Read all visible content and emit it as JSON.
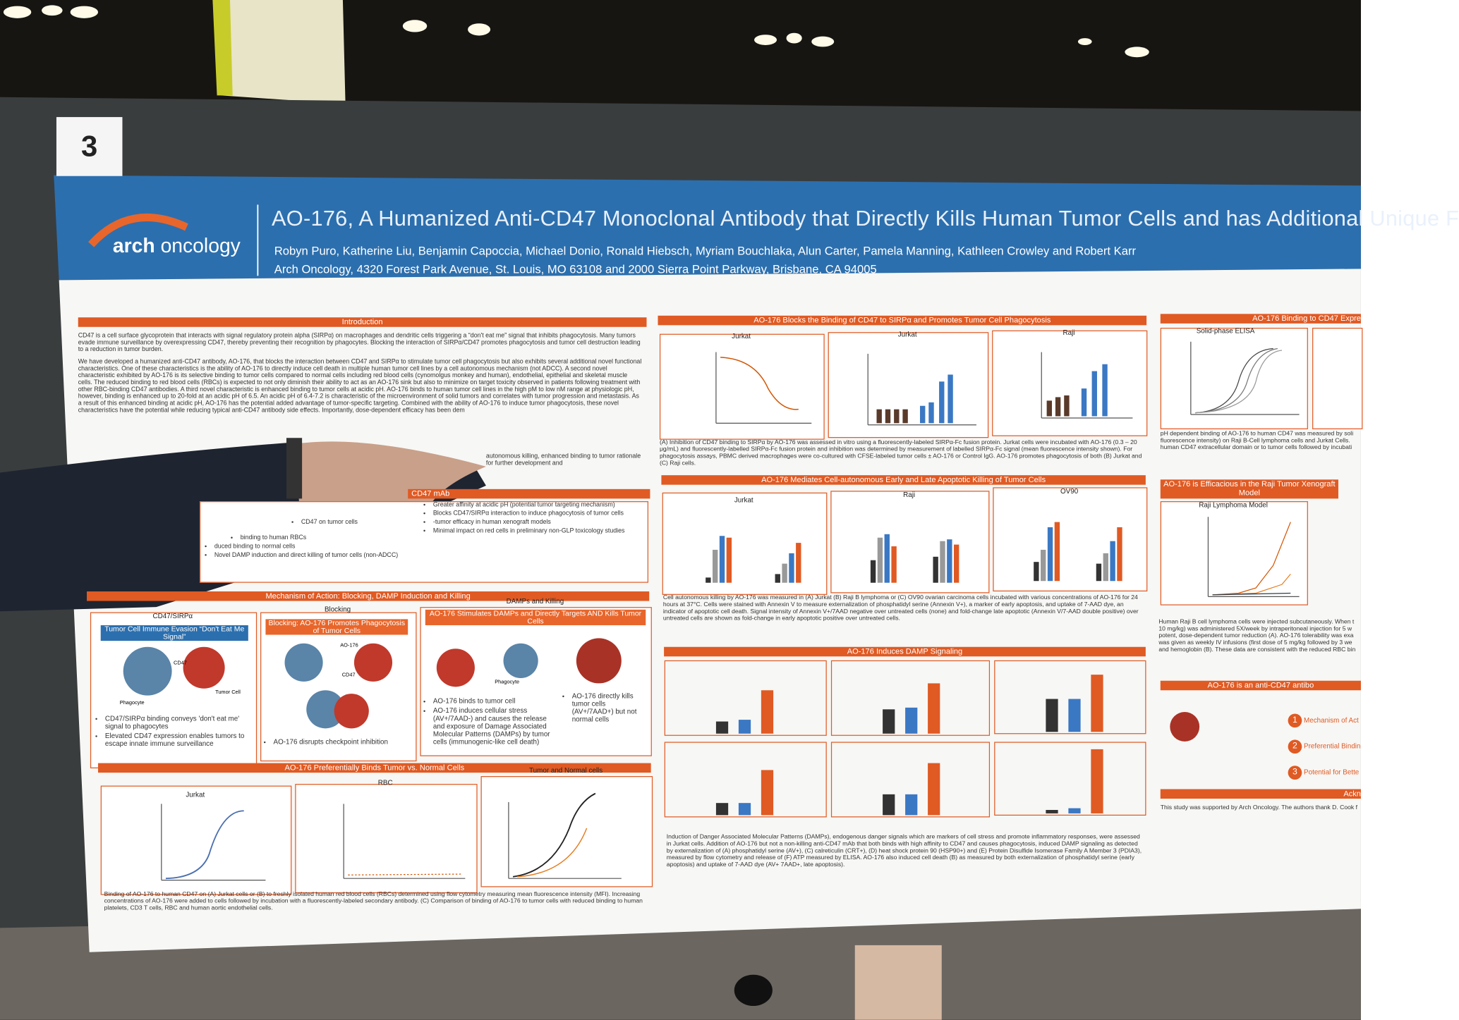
{
  "poster_number": "3",
  "header": {
    "logo_a": "arch",
    "logo_b": "oncology",
    "title": "AO-176, A Humanized Anti-CD47 Monoclonal Antibody that Directly Kills Human Tumor Cells and has Additional Unique F",
    "authors": "Robyn Puro, Katherine Liu, Benjamin Capoccia, Michael Donio, Ronald Hiebsch, Myriam Bouchlaka, Alun Carter, Pamela Manning, Kathleen Crowley and Robert Karr",
    "affiliation": "Arch Oncology, 4320 Forest Park Avenue, St. Louis, MO 63108 and 2000 Sierra Point Parkway, Brisbane, CA 94005"
  },
  "introduction": {
    "heading": "Introduction",
    "paragraphs": [
      "CD47 is a cell surface glycoprotein that interacts with signal regulatory protein alpha (SIRPα) on macrophages and dendritic cells triggering a “don't eat me” signal that inhibits phagocytosis. Many tumors evade immune surveillance by overexpressing CD47, thereby preventing their recognition by phagocytes. Blocking the interaction of SIRPα/CD47 promotes phagocytosis and tumor cell destruction leading to a reduction in tumor burden.",
      "We have developed a humanized anti-CD47 antibody, AO-176, that blocks the interaction between CD47 and SIRPα to stimulate tumor cell phagocytosis but also exhibits several additional novel functional characteristics. One of these characteristics is the ability of AO-176 to directly induce cell death in multiple human tumor cell lines by a cell autonomous mechanism (not ADCC). A second novel characteristic exhibited by AO-176 is its selective binding to tumor cells compared to normal cells including red blood cells (cynomolgus monkey and human), endothelial, epithelial and skeletal muscle cells. The reduced binding to red blood cells (RBCs) is expected to not only diminish their ability to act as an AO-176 sink but also to minimize on target toxicity observed in patients following treatment with other RBC-binding CD47 antibodies. A third novel characteristic is enhanced binding to tumor cells at acidic pH. AO-176 binds to human tumor cell lines in the high pM to low nM range at physiologic pH, however, binding is enhanced up to 20-fold at an acidic pH of 6.5. An acidic pH of 6.4-7.2 is characteristic of the microenvironment of solid tumors and correlates with tumor progression and metastasis. As a result of this enhanced binding at acidic pH, AO-176 has the potential added advantage of tumor-specific targeting. Combined with the ability of AO-176 to induce tumor phagocytosis, these novel characteristics have the potential while reducing typical anti-CD47 antibody side effects. Importantly, dose-dependent efficacy has been dem"
    ],
    "tail": "autonomous killing, enhanced binding to tumor rationale for further development and"
  },
  "features": {
    "heading": "CD47 mAb",
    "left": [
      "CD47 on tumor cells",
      "binding to human RBCs",
      "duced binding to normal cells",
      "Novel DAMP induction and direct killing of tumor cells (non-ADCC)"
    ],
    "right": [
      "Greater affinity at acidic pH (potential tumor targeting mechanism)",
      "Blocks CD47/SIRPα interaction to induce phagocytosis of tumor cells",
      "-tumor efficacy in human xenograft models",
      "Minimal impact on red cells in preliminary non-GLP toxicology studies"
    ]
  },
  "mechanism": {
    "heading": "Mechanism of Action: Blocking, DAMP Induction and Killing",
    "panels": [
      {
        "title": "CD47/SIRPα",
        "box": "Tumor Cell Immune Evasion “Don't Eat Me Signal”",
        "labels": [
          "Phagocyte",
          "CD47",
          "Tumor Cell"
        ],
        "bullets": [
          "CD47/SIRPα binding conveys 'don't eat me' signal to phagocytes",
          "Elevated CD47 expression enables tumors to escape innate immune surveillance"
        ]
      },
      {
        "title": "Blocking",
        "box": "Blocking: AO-176 Promotes Phagocytosis of Tumor Cells",
        "labels": [
          "AO-176",
          "CD47"
        ],
        "bullets": [
          "AO-176 disrupts checkpoint inhibition"
        ]
      },
      {
        "title": "DAMPs and Killing",
        "box": "AO-176 Stimulates DAMPs and Directly Targets AND Kills Tumor Cells",
        "labels": [
          "Phagocyte"
        ],
        "bullets": [
          "AO-176 binds to tumor cell",
          "AO-176 induces cellular stress (AV+/7AAD-) and causes the release and exposure of Damage Associated Molecular Patterns (DAMPs) by tumor cells (immunogenic-like cell death)",
          "AO-176 directly kills tumor cells (AV+/7AAD+) but not normal cells"
        ]
      }
    ]
  },
  "binding": {
    "heading": "AO-176 Preferentially Binds Tumor vs. Normal Cells",
    "panels": [
      "Jurkat",
      "RBC",
      "Tumor and Normal cells"
    ],
    "caption": "Binding of AO-176 to human CD47 on (A) Jurkat cells or (B) to freshly isolated human red blood cells (RBCs) determined using flow cytometry measuring mean fluorescence intensity (MFI). Increasing concentrations of AO-176 were added to cells followed by incubation with a fluorescently-labeled secondary antibody. (C) Comparison of binding of AO-176 to tumor cells with reduced binding to human platelets, CD3 T cells, RBC and human aortic endothelial cells."
  },
  "blocks": {
    "heading": "AO-176 Blocks the Binding of CD47 to SIRPα and Promotes Tumor Cell Phagocytosis",
    "panels": [
      "Jurkat",
      "Jurkat",
      "Raji"
    ],
    "caption": "(A) Inhibition of CD47 binding to SIRPα by AO-176 was assessed in vitro using a fluorescently-labeled SIRPα-Fc fusion protein. Jurkat cells were incubated with AO-176 (0.3 – 20 μg/mL) and fluorescently-labelled SIRPα-Fc fusion protein and inhibition was determined by measurement of labelled SIRPα-Fc signal (mean fluorescence intensity shown). For phagocytosis assays, PBMC derived macrophages were co-cultured with CFSE-labeled tumor cells ± AO-176 or Control IgG. AO-176 promotes phagocytosis of both (B) Jurkat and (C) Raji cells."
  },
  "apoptosis": {
    "heading": "AO-176 Mediates Cell-autonomous Early and Late Apoptotic Killing of Tumor Cells",
    "panels": [
      "Jurkat",
      "Raji",
      "OV90"
    ],
    "caption": "Cell autonomous killing by AO-176 was measured in (A) Jurkat (B) Raji B lymphoma or (C) OV90 ovarian carcinoma cells incubated with various concentrations of AO-176 for 24 hours at 37°C. Cells were stained with Annexin V to measure externalization of phosphatidyl serine (Annexin V+), a marker of early apoptosis, and uptake of 7-AAD dye, an indicator of apoptotic cell death. Signal intensity of Annexin V+/7AAD negative over untreated cells (none) and fold-change late apoptotic (Annexin V/7-AAD double positive) over untreated cells are shown as fold-change in early apoptotic positive over untreated cells."
  },
  "damp": {
    "heading": "AO-176 Induces DAMP Signaling",
    "caption": "Induction of Danger Associated Molecular Patterns (DAMPs), endogenous danger signals which are markers of cell stress and promote inflammatory responses, were assessed in Jurkat cells. Addition of AO-176 but not a non-killing anti-CD47 mAb that both binds with high affinity to CD47 and causes phagocytosis, induced DAMP signaling as detected by externalization of (A) phosphatidyl serine (AV+), (C) calreticulin (CRT+), (D) heat shock protein 90 (HSP90+) and (E) Protein Disulfide Isomerase Family A Member 3 (PDIA3), measured by flow cytometry and release of (F) ATP measured by ELISA. AO-176 also induced cell death (B) as measured by both externalization of phosphatidyl serine (early apoptosis) and uptake of 7-AAD dye (AV+ 7AAD+, late apoptosis)."
  },
  "right": {
    "heading1": "AO-176 Binding to CD47 Expre",
    "panel1": "Solid-phase ELISA",
    "caption1": "pH dependent binding of AO-176 to human CD47 was measured by soli fluorescence intensity) on Raji B-Cell lymphoma cells and Jurkat Cells. human CD47 extracellular domain or to tumor cells followed by incubati",
    "heading2": "AO-176 is Efficacious in the Raji Tumor Xenograft Model",
    "panel2": "Raji Lymphoma Model",
    "caption2": "Human Raji B cell lymphoma cells were injected subcutaneously. When t 10 mg/kg) was administered 5X/week by intraperitoneal injection for 5 w potent, dose-dependent tumor reduction (A). AO-176 tolerability was exa was given as weekly IV infusions (first dose of 5 mg/kg followed by 3 we and hemoglobin (B). These data are consistent with the reduced RBC bin",
    "heading3": "AO-176 is an anti-CD47 antibo",
    "items": [
      {
        "n": "1",
        "text": "Mechanism of Act"
      },
      {
        "n": "2",
        "text": "Preferential Bindin"
      },
      {
        "n": "3",
        "text": "Potential for Bette"
      }
    ],
    "heading4": "Ackn",
    "ack": "This study was supported by Arch Oncology. The authors thank D. Cook f"
  }
}
